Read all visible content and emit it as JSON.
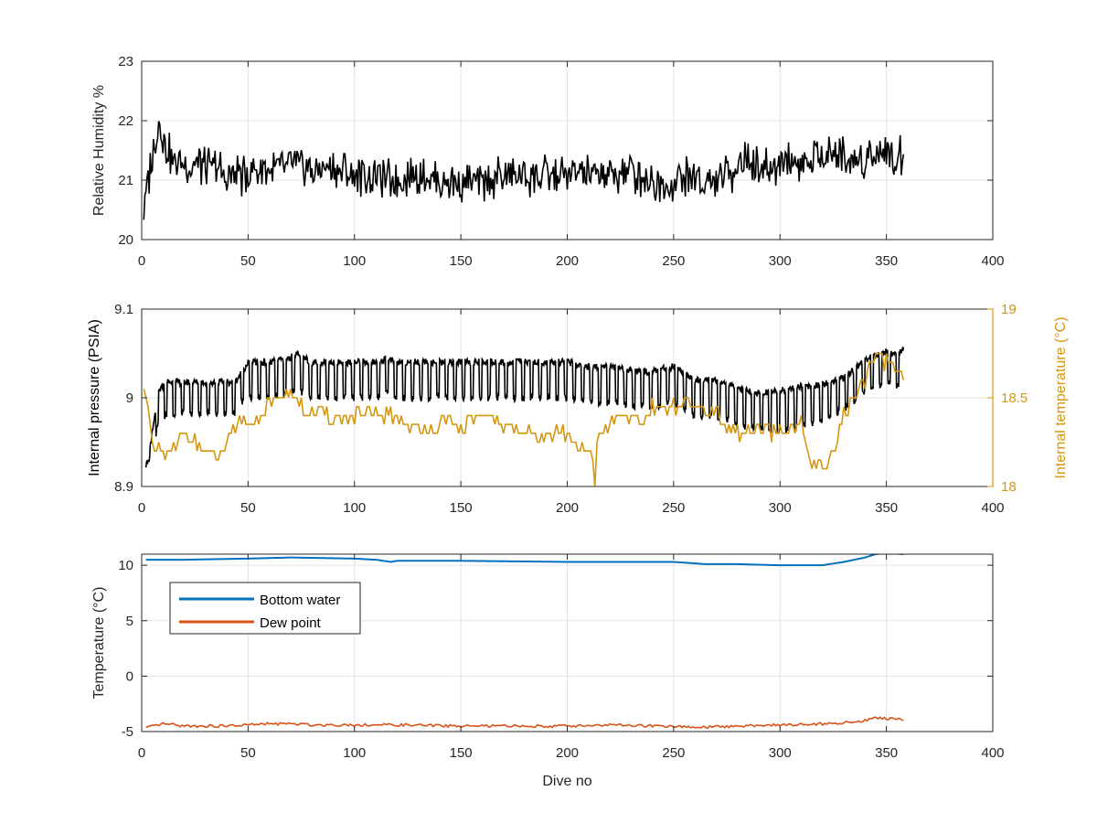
{
  "chart_data": [
    {
      "type": "line",
      "xlabel": "",
      "ylabel": "Relative Humidity %",
      "xlim": [
        0,
        400
      ],
      "ylim": [
        20,
        23
      ],
      "x_ticks": [
        0,
        50,
        100,
        150,
        200,
        250,
        300,
        350,
        400
      ],
      "y_ticks": [
        20,
        21,
        22,
        23
      ],
      "grid": true,
      "colors": {
        "series": "#000000"
      },
      "series": [
        {
          "x": [
            1,
            3,
            6,
            8,
            12,
            16,
            22,
            28,
            35,
            42,
            48,
            55,
            62,
            70,
            80,
            90,
            100,
            110,
            120,
            130,
            140,
            150,
            160,
            170,
            180,
            190,
            200,
            210,
            220,
            230,
            240,
            250,
            255,
            260,
            265,
            270,
            275,
            280,
            285,
            290,
            295,
            300,
            305,
            310,
            315,
            320,
            325,
            330,
            335,
            340,
            345,
            350,
            355,
            358
          ],
          "values": [
            20.35,
            21.0,
            21.55,
            21.95,
            21.5,
            21.3,
            21.3,
            21.25,
            21.2,
            21.05,
            21.1,
            21.2,
            21.15,
            21.25,
            21.15,
            21.2,
            21.1,
            21.05,
            21.0,
            21.1,
            21.0,
            20.95,
            20.95,
            21.05,
            21.1,
            21.05,
            21.1,
            21.1,
            21.1,
            21.15,
            21.0,
            20.95,
            21.05,
            21.05,
            20.9,
            20.95,
            21.05,
            21.25,
            21.35,
            21.2,
            21.15,
            21.3,
            21.35,
            21.25,
            21.3,
            21.4,
            21.5,
            21.35,
            21.3,
            21.4,
            21.45,
            21.5,
            21.3,
            21.5
          ]
        }
      ]
    },
    {
      "type": "line",
      "xlabel": "",
      "ylabel": "Internal pressure (PSIA)",
      "y2label": "Internal temperature (°C)",
      "xlim": [
        0,
        400
      ],
      "ylim": [
        8.9,
        9.1
      ],
      "y2lim": [
        18,
        19
      ],
      "x_ticks": [
        0,
        50,
        100,
        150,
        200,
        250,
        300,
        350,
        400
      ],
      "y_ticks": [
        "8.9",
        "9",
        "9.1"
      ],
      "y2_ticks": [
        "18",
        "18.5",
        "19"
      ],
      "grid": true,
      "colors": {
        "pressure": "#000000",
        "temperature": "#d4970f"
      },
      "series": [
        {
          "axis": "left",
          "x": [
            2,
            5,
            8,
            12,
            20,
            30,
            40,
            44,
            46,
            50,
            60,
            70,
            72,
            80,
            90,
            100,
            110,
            116,
            120,
            130,
            140,
            150,
            160,
            170,
            180,
            190,
            200,
            210,
            220,
            230,
            240,
            250,
            260,
            270,
            280,
            290,
            300,
            310,
            320,
            330,
            335,
            340,
            345,
            350,
            355,
            358
          ],
          "values": [
            8.92,
            8.95,
            8.99,
            9.0,
            9.0,
            9.0,
            9.0,
            9.0,
            9.01,
            9.02,
            9.02,
            9.025,
            9.03,
            9.02,
            9.02,
            9.02,
            9.02,
            9.025,
            9.02,
            9.02,
            9.02,
            9.02,
            9.02,
            9.02,
            9.02,
            9.02,
            9.02,
            9.015,
            9.015,
            9.01,
            9.01,
            9.015,
            9.0,
            9.0,
            8.99,
            8.985,
            8.985,
            8.99,
            8.995,
            9.005,
            9.015,
            9.025,
            9.03,
            9.035,
            9.03,
            9.04
          ],
          "amplitude": [
            0.0,
            0.02,
            0.035,
            0.035,
            0.035,
            0.035,
            0.035,
            0.035,
            0.03,
            0.04,
            0.04,
            0.04,
            0.04,
            0.04,
            0.04,
            0.04,
            0.04,
            0.04,
            0.04,
            0.04,
            0.04,
            0.04,
            0.04,
            0.04,
            0.04,
            0.04,
            0.04,
            0.04,
            0.04,
            0.04,
            0.04,
            0.04,
            0.04,
            0.04,
            0.04,
            0.04,
            0.045,
            0.045,
            0.04,
            0.035,
            0.035,
            0.035,
            0.035,
            0.035,
            0.035,
            0.03
          ]
        },
        {
          "axis": "right",
          "x": [
            1,
            3,
            5,
            8,
            12,
            15,
            20,
            25,
            30,
            35,
            40,
            44,
            46,
            48,
            50,
            55,
            60,
            65,
            70,
            75,
            80,
            90,
            100,
            110,
            120,
            125,
            130,
            140,
            150,
            160,
            170,
            180,
            190,
            200,
            205,
            210,
            212,
            213,
            214,
            220,
            230,
            235,
            240,
            250,
            260,
            270,
            280,
            290,
            300,
            310,
            313,
            318,
            322,
            326,
            330,
            335,
            340,
            343,
            346,
            350,
            355,
            358
          ],
          "values": [
            18.6,
            18.45,
            18.2,
            18.2,
            18.15,
            18.2,
            18.3,
            18.25,
            18.2,
            18.15,
            18.25,
            18.3,
            18.35,
            18.4,
            18.35,
            18.4,
            18.45,
            18.5,
            18.55,
            18.45,
            18.4,
            18.4,
            18.4,
            18.4,
            18.4,
            18.35,
            18.3,
            18.35,
            18.35,
            18.4,
            18.35,
            18.3,
            18.3,
            18.3,
            18.2,
            18.2,
            18.15,
            18.0,
            18.25,
            18.35,
            18.4,
            18.35,
            18.45,
            18.45,
            18.45,
            18.4,
            18.3,
            18.3,
            18.3,
            18.35,
            18.15,
            18.1,
            18.1,
            18.25,
            18.4,
            18.5,
            18.6,
            18.7,
            18.75,
            18.7,
            18.7,
            18.6
          ]
        }
      ]
    },
    {
      "type": "line",
      "xlabel": "Dive no",
      "ylabel": "Temperature (°C)",
      "xlim": [
        0,
        400
      ],
      "ylim": [
        -5,
        11
      ],
      "x_ticks": [
        0,
        50,
        100,
        150,
        200,
        250,
        300,
        350,
        400
      ],
      "y_ticks": [
        -5,
        0,
        5,
        10
      ],
      "grid": true,
      "legend_position": "top-left",
      "series": [
        {
          "name": "Bottom water",
          "color": "#0072bd",
          "x": [
            2,
            20,
            50,
            70,
            100,
            110,
            117,
            120,
            150,
            200,
            250,
            265,
            280,
            300,
            320,
            330,
            340,
            345,
            350,
            358
          ],
          "values": [
            10.5,
            10.5,
            10.6,
            10.7,
            10.6,
            10.5,
            10.3,
            10.4,
            10.4,
            10.3,
            10.3,
            10.1,
            10.1,
            10.0,
            10.0,
            10.3,
            10.7,
            11.0,
            11.1,
            11.0
          ]
        },
        {
          "name": "Dew point",
          "color": "#d95319",
          "x": [
            2,
            10,
            20,
            30,
            40,
            50,
            60,
            70,
            80,
            90,
            100,
            120,
            150,
            180,
            200,
            220,
            240,
            260,
            265,
            280,
            300,
            320,
            330,
            340,
            345,
            350,
            355,
            358
          ],
          "values": [
            -4.7,
            -4.3,
            -4.5,
            -4.5,
            -4.5,
            -4.4,
            -4.3,
            -4.3,
            -4.4,
            -4.4,
            -4.4,
            -4.4,
            -4.5,
            -4.5,
            -4.5,
            -4.4,
            -4.5,
            -4.6,
            -4.6,
            -4.5,
            -4.4,
            -4.3,
            -4.2,
            -4.0,
            -3.8,
            -3.8,
            -3.9,
            -3.9
          ]
        }
      ]
    }
  ]
}
